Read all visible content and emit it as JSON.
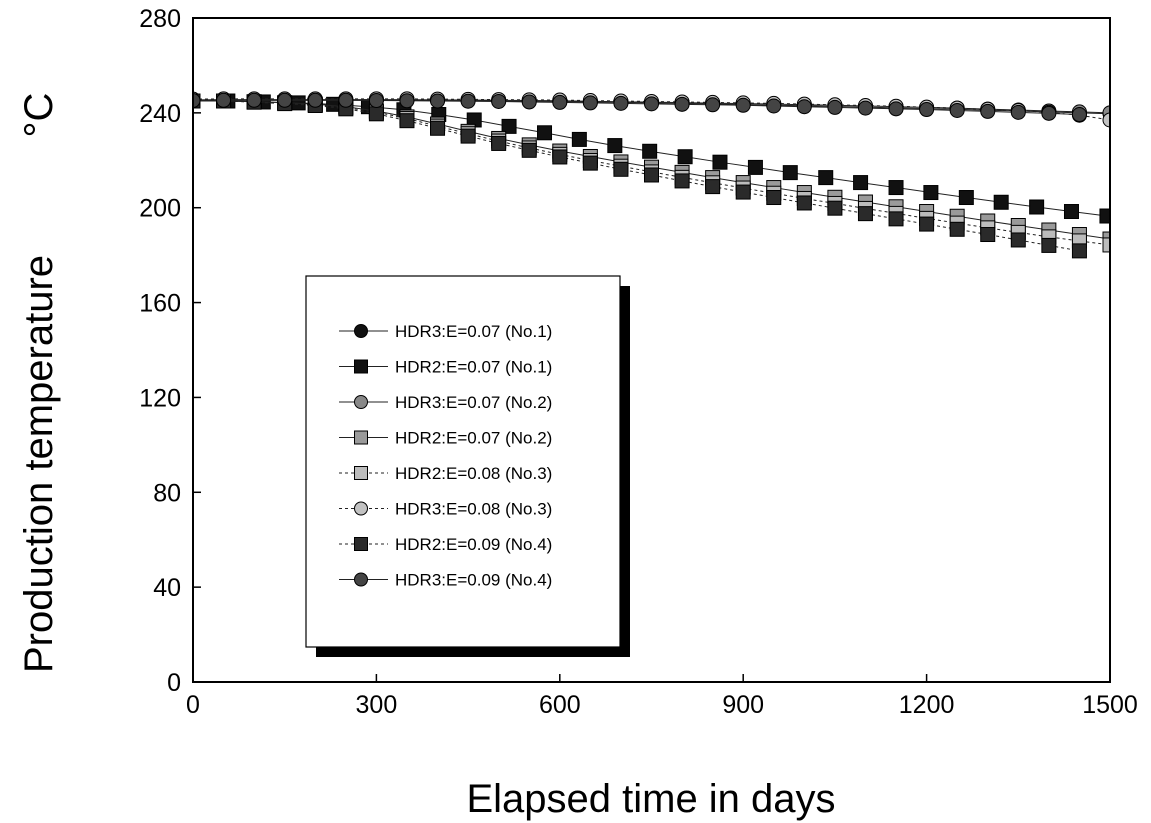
{
  "chart_data": {
    "type": "line",
    "title": "",
    "xlabel": "Elapsed time in days",
    "ylabel": "Production temperature",
    "yunit": "°C",
    "xlim": [
      0,
      1500
    ],
    "ylim": [
      0,
      280
    ],
    "x_ticks": [
      0,
      300,
      600,
      900,
      1200,
      1500
    ],
    "y_ticks": [
      0,
      40,
      80,
      120,
      160,
      200,
      240,
      280
    ],
    "grid": false,
    "legend_position": "lower-left",
    "series": [
      {
        "name": "HDR3:E=0.07 (No.1)",
        "marker": "circle",
        "fill": "#111111",
        "dash": "",
        "x": [
          0,
          50,
          100,
          150,
          200,
          250,
          300,
          350,
          400,
          450,
          500,
          550,
          600,
          650,
          700,
          750,
          800,
          850,
          900,
          950,
          1000,
          1050,
          1100,
          1150,
          1200,
          1250,
          1300,
          1350,
          1400,
          1450,
          1500
        ],
        "y": [
          245,
          245.2,
          245.3,
          245.3,
          245.3,
          245.3,
          245.3,
          245.3,
          245.2,
          245.1,
          245,
          244.9,
          244.8,
          244.6,
          244.4,
          244.2,
          244,
          243.8,
          243.5,
          243.2,
          243,
          242.7,
          242.4,
          242.1,
          241.8,
          241.5,
          241.1,
          240.8,
          240.4,
          240,
          239.6
        ]
      },
      {
        "name": "HDR2:E=0.07 (No.1)",
        "marker": "square",
        "fill": "#111111",
        "dash": "",
        "x": [
          0,
          57,
          115,
          172,
          230,
          287,
          345,
          402,
          460,
          517,
          575,
          632,
          690,
          747,
          805,
          862,
          920,
          977,
          1035,
          1092,
          1150,
          1207,
          1265,
          1322,
          1380,
          1437,
          1495
        ],
        "y": [
          245,
          245,
          244.6,
          244.2,
          243.6,
          242.6,
          241.3,
          239.3,
          237,
          234.3,
          231.6,
          228.8,
          226.2,
          223.8,
          221.5,
          219.2,
          217,
          214.8,
          212.7,
          210.6,
          208.5,
          206.4,
          204.3,
          202.3,
          200.3,
          198.4,
          196.5
        ]
      },
      {
        "name": "HDR3:E=0.07 (No.2)",
        "marker": "circle",
        "fill": "#888888",
        "dash": "",
        "x": [
          0,
          50,
          100,
          150,
          200,
          250,
          300,
          350,
          400,
          450,
          500,
          550,
          600,
          650,
          700,
          750,
          800,
          850,
          900,
          950,
          1000,
          1050,
          1100,
          1150,
          1200,
          1250,
          1300,
          1350,
          1400,
          1450,
          1500
        ],
        "y": [
          245.5,
          245.6,
          245.6,
          245.6,
          245.6,
          245.6,
          245.6,
          245.6,
          245.5,
          245.4,
          245.3,
          245.2,
          245.1,
          244.9,
          244.7,
          244.5,
          244.3,
          244.1,
          243.9,
          243.7,
          243.4,
          243.2,
          242.9,
          242.6,
          242.3,
          242,
          241.6,
          241.2,
          240.8,
          240.4,
          240
        ]
      },
      {
        "name": "HDR2:E=0.07 (No.2)",
        "marker": "square",
        "fill": "#9a9a9a",
        "dash": "",
        "x": [
          0,
          50,
          100,
          150,
          200,
          250,
          300,
          350,
          400,
          450,
          500,
          550,
          600,
          650,
          700,
          750,
          800,
          850,
          900,
          950,
          1000,
          1050,
          1100,
          1150,
          1200,
          1250,
          1300,
          1350,
          1400,
          1450,
          1500
        ],
        "y": [
          245,
          245,
          244.7,
          244.3,
          243.7,
          242.6,
          240.8,
          238.3,
          235.3,
          232.2,
          229.2,
          226.5,
          223.9,
          221.6,
          219.3,
          217.1,
          214.9,
          212.7,
          210.6,
          208.5,
          206.4,
          204.4,
          202.4,
          200.4,
          198.4,
          196.4,
          194.4,
          192.5,
          190.6,
          188.7,
          186.8
        ]
      },
      {
        "name": "HDR2:E=0.08 (No.3)",
        "marker": "square",
        "fill": "#bcbcbc",
        "dash": "3,3",
        "x": [
          0,
          50,
          100,
          150,
          200,
          250,
          300,
          350,
          400,
          450,
          500,
          550,
          600,
          650,
          700,
          750,
          800,
          850,
          900,
          950,
          1000,
          1050,
          1100,
          1150,
          1200,
          1250,
          1300,
          1350,
          1400,
          1450,
          1500
        ],
        "y": [
          245,
          245,
          244.6,
          244.1,
          243.4,
          242.2,
          240.3,
          237.6,
          234.4,
          231.2,
          228.1,
          225.2,
          222.5,
          219.9,
          217.5,
          215.1,
          212.8,
          210.5,
          208.3,
          206.1,
          203.9,
          201.8,
          199.7,
          197.6,
          195.5,
          193.5,
          191.5,
          189.6,
          187.7,
          186,
          184.3
        ]
      },
      {
        "name": "HDR3:E=0.08 (No.3)",
        "marker": "circle",
        "fill": "#c2c2c2",
        "dash": "3,3",
        "x": [
          0,
          50,
          100,
          150,
          200,
          250,
          300,
          350,
          400,
          450,
          500,
          550,
          600,
          650,
          700,
          750,
          800,
          850,
          900,
          950,
          1000,
          1050,
          1100,
          1150,
          1200,
          1250,
          1300,
          1350,
          1400,
          1450,
          1500
        ],
        "y": [
          245.8,
          245.9,
          245.9,
          245.9,
          245.9,
          245.9,
          245.9,
          245.9,
          245.8,
          245.7,
          245.6,
          245.5,
          245.4,
          245.2,
          245,
          244.8,
          244.6,
          244.4,
          244.2,
          244,
          243.7,
          243.4,
          243.1,
          242.8,
          242.4,
          242,
          241.5,
          241,
          240.2,
          239,
          237
        ]
      },
      {
        "name": "HDR2:E=0.09 (No.4)",
        "marker": "square",
        "fill": "#2a2a2a",
        "dash": "3,3",
        "x": [
          0,
          50,
          100,
          150,
          200,
          250,
          300,
          350,
          400,
          450,
          500,
          550,
          600,
          650,
          700,
          750,
          800,
          850,
          900,
          950,
          1000,
          1050,
          1100,
          1150,
          1200,
          1250,
          1300,
          1350,
          1400,
          1450
        ],
        "y": [
          245,
          245,
          244.5,
          243.9,
          243.1,
          241.7,
          239.6,
          236.7,
          233.5,
          230.2,
          227.1,
          224.2,
          221.4,
          218.8,
          216.2,
          213.8,
          211.3,
          208.9,
          206.6,
          204.3,
          202,
          199.8,
          197.5,
          195.3,
          193.1,
          190.9,
          188.7,
          186.4,
          184.1,
          181.8
        ]
      },
      {
        "name": "HDR3:E=0.09 (No.4)",
        "marker": "circle",
        "fill": "#444444",
        "dash": "",
        "x": [
          0,
          50,
          100,
          150,
          200,
          250,
          300,
          350,
          400,
          450,
          500,
          550,
          600,
          650,
          700,
          750,
          800,
          850,
          900,
          950,
          1000,
          1050,
          1100,
          1150,
          1200,
          1250,
          1300,
          1350,
          1400,
          1450
        ],
        "y": [
          245.2,
          245.3,
          245.3,
          245.3,
          245.3,
          245.3,
          245.2,
          245.1,
          245,
          244.9,
          244.8,
          244.6,
          244.4,
          244.2,
          244,
          243.8,
          243.6,
          243.4,
          243.2,
          242.9,
          242.6,
          242.3,
          242,
          241.7,
          241.4,
          241,
          240.6,
          240.2,
          239.8,
          239.3
        ]
      }
    ]
  }
}
